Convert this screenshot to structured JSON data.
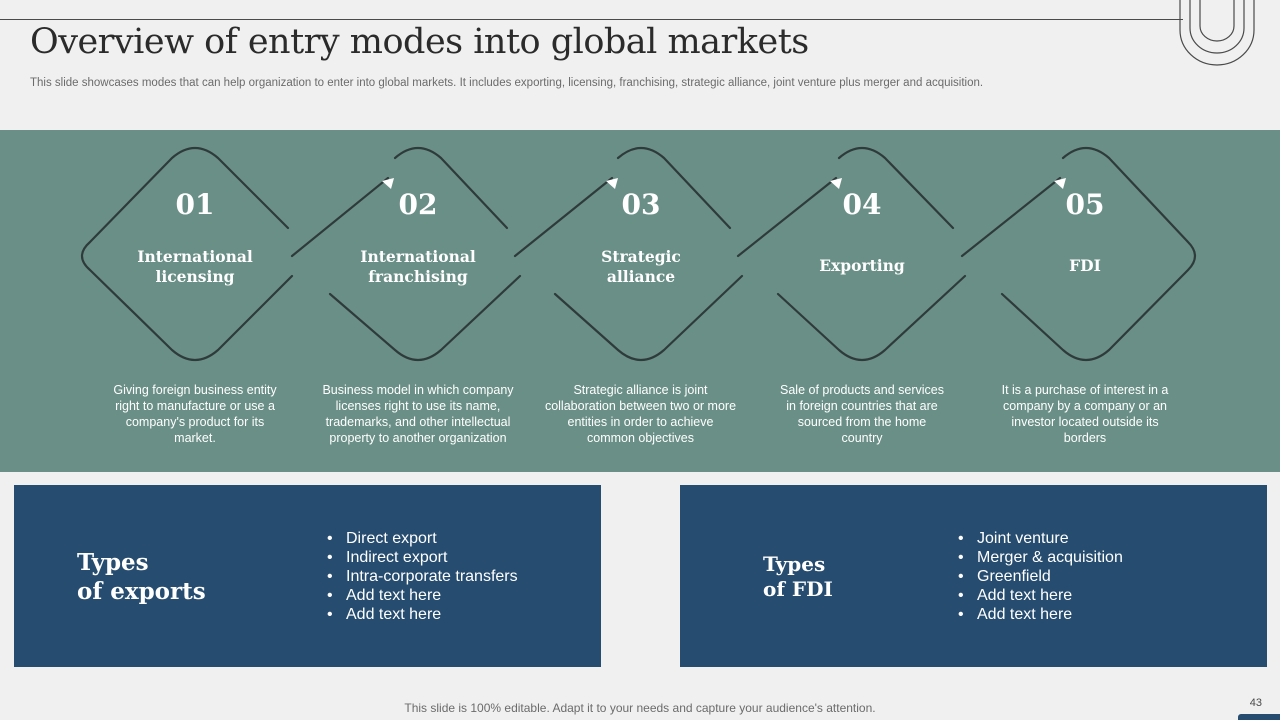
{
  "slide": {
    "title": "Overview of entry modes into global markets",
    "subtitle": "This slide showcases modes that can help organization to enter into global markets. It includes exporting, licensing, franchising, strategic alliance, joint venture plus merger and acquisition.",
    "footer": "This slide is 100% editable. Adapt it to your needs and capture your audience's attention.",
    "page_number": "43"
  },
  "steps": [
    {
      "number": "01",
      "title": "International\nlicensing",
      "desc": "Giving foreign business entity right to manufacture or use a company's product for its market."
    },
    {
      "number": "02",
      "title": "International\nfranchising",
      "desc": "Business model in which company licenses right to use its name, trademarks, and other intellectual property to another organization"
    },
    {
      "number": "03",
      "title": "Strategic\nalliance",
      "desc": "Strategic alliance is joint collaboration between two or more entities in order to achieve common objectives"
    },
    {
      "number": "04",
      "title": "Exporting",
      "desc": "Sale of products and services in foreign countries that are sourced from the home country"
    },
    {
      "number": "05",
      "title": "FDI",
      "desc": "It is a purchase of interest in a company by a company or an investor located outside its borders"
    }
  ],
  "cards": {
    "exports": {
      "title": "Types\nof exports",
      "items": [
        "Direct export",
        "Indirect export",
        "Intra-corporate transfers",
        "Add text here",
        "Add text here"
      ]
    },
    "fdi": {
      "title": "Types\nof FDI",
      "items": [
        "Joint venture",
        "Merger & acquisition",
        "Greenfield",
        "Add text here",
        "Add text here"
      ]
    }
  },
  "colors": {
    "band": "#6a8f86",
    "card": "#264c70",
    "outline": "#2e3b3a"
  }
}
